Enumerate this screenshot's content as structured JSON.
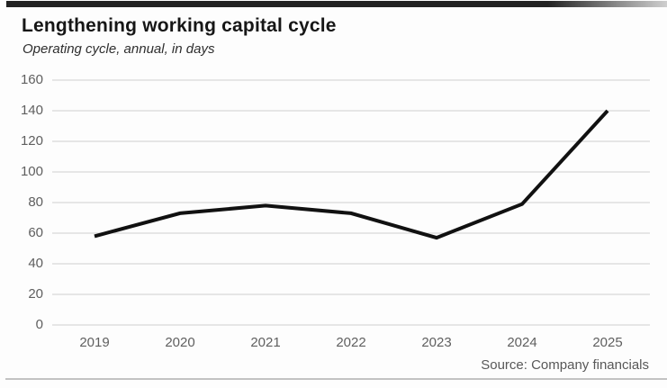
{
  "header": {
    "title": "Lengthening working capital cycle",
    "subtitle": "Operating cycle, annual, in days"
  },
  "source": "Source: Company financials",
  "chart_data": {
    "type": "line",
    "title": "Lengthening working capital cycle",
    "subtitle": "Operating cycle, annual, in days",
    "categories": [
      "2019",
      "2020",
      "2021",
      "2022",
      "2023",
      "2024",
      "2025"
    ],
    "series": [
      {
        "name": "Operating cycle (days)",
        "values": [
          58,
          73,
          78,
          73,
          57,
          79,
          140
        ]
      }
    ],
    "xlabel": "",
    "ylabel": "days",
    "ylim": [
      0,
      160
    ],
    "yticks": [
      0,
      20,
      40,
      60,
      80,
      100,
      120,
      140,
      160
    ],
    "grid": "horizontal",
    "legend": "none",
    "line_color": "#111111",
    "gridline_color": "#d9d9d9",
    "axis_label_color": "#5f5f5f",
    "title_color": "#161616"
  }
}
